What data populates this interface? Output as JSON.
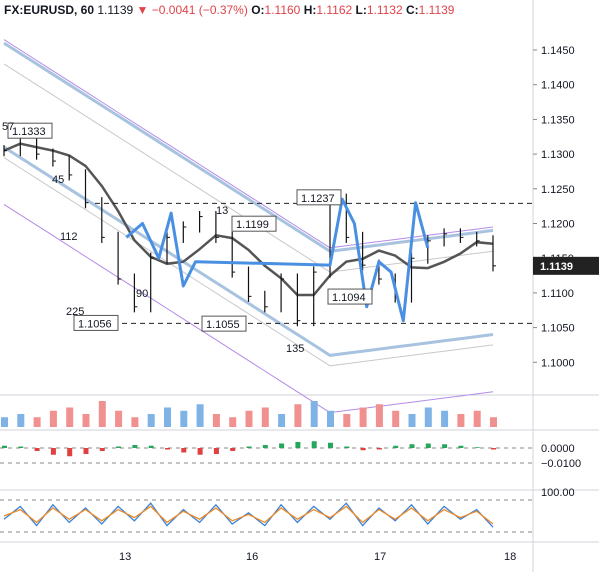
{
  "header": {
    "symbol": "FX:EURUSD, 60",
    "last": "1.1139",
    "change": "−0.0041 (−0.37%)",
    "open_label": "O:",
    "open": "1.1160",
    "high_label": "H:",
    "high": "1.1162",
    "low_label": "L:",
    "low": "1.1132",
    "close_label": "C:",
    "close": "1.1139"
  },
  "chart_data": {
    "type": "line",
    "title": "FX:EURUSD, 60",
    "price_axis": {
      "ticks": [
        "1.1450",
        "1.1400",
        "1.1350",
        "1.1300",
        "1.1250",
        "1.1200",
        "1.1150",
        "1.1100",
        "1.1050",
        "1.1000"
      ],
      "values": [
        1.145,
        1.14,
        1.135,
        1.13,
        1.125,
        1.12,
        1.115,
        1.11,
        1.105,
        1.1
      ],
      "current_price_label": "1.1139"
    },
    "time_axis": {
      "ticks": [
        "13",
        "16",
        "17",
        "18"
      ]
    },
    "price_series": {
      "name": "EURUSD",
      "x": [
        0,
        4,
        8,
        12,
        16,
        20,
        24,
        28,
        32,
        36,
        40,
        44,
        48,
        52,
        56,
        60,
        64,
        68,
        72,
        76,
        80,
        84,
        88,
        92,
        96,
        100,
        104,
        108,
        112,
        116,
        120
      ],
      "values": [
        1.1305,
        1.1325,
        1.13,
        1.129,
        1.127,
        1.123,
        1.118,
        1.112,
        1.108,
        1.115,
        1.118,
        1.1195,
        1.121,
        1.118,
        1.113,
        1.1095,
        1.108,
        1.112,
        1.106,
        1.113,
        1.1235,
        1.118,
        1.114,
        1.112,
        1.1094,
        1.115,
        1.1175,
        1.1185,
        1.118,
        1.1175,
        1.1139
      ]
    },
    "projection": {
      "x": [
        30,
        34,
        38,
        41,
        44,
        47,
        80,
        83,
        86,
        89,
        92,
        95,
        98,
        101,
        104
      ],
      "values": [
        1.118,
        1.12,
        1.115,
        1.1215,
        1.111,
        1.1145,
        1.114,
        1.1235,
        1.12,
        1.108,
        1.1145,
        1.113,
        1.106,
        1.123,
        1.1165
      ]
    },
    "levels": [
      {
        "label": "1.1333",
        "value": 1.1333
      },
      {
        "label": "1.1237",
        "value": 1.1237
      },
      {
        "label": "1.1199",
        "value": 1.1199
      },
      {
        "label": "1.1094",
        "value": 1.1094
      },
      {
        "label": "1.1056",
        "value": 1.1056
      },
      {
        "label": "1.1055",
        "value": 1.1055
      }
    ],
    "dashed_lines": [
      1.1229,
      1.1056
    ],
    "cycle_labels": [
      "57",
      "45",
      "112",
      "13",
      "90",
      "225",
      "135"
    ],
    "volume_series": [
      3,
      4,
      3,
      5,
      6,
      4,
      8,
      5,
      3,
      4,
      6,
      5,
      7,
      4,
      3,
      5,
      6,
      4,
      7,
      8,
      5,
      4,
      6,
      7,
      5,
      4,
      6,
      5,
      4,
      5,
      3
    ],
    "macd_axis": {
      "ticks": [
        "0.0000",
        "−0.0100"
      ],
      "values": [
        0,
        -0.01
      ]
    },
    "macd_histogram": [
      0.0015,
      0.001,
      -0.002,
      -0.0045,
      -0.0055,
      -0.004,
      -0.002,
      0.001,
      0.002,
      0.0015,
      -0.001,
      -0.003,
      -0.0045,
      -0.004,
      -0.002,
      0.001,
      0.002,
      0.003,
      0.004,
      0.0045,
      0.0035,
      0.001,
      -0.0015,
      -0.001,
      0.0015,
      0.0025,
      0.003,
      0.0025,
      0.0015,
      0.0005,
      -0.001
    ],
    "stoch_axis": {
      "ticks": [
        "100.00"
      ],
      "values": [
        100
      ]
    },
    "stoch_k": [
      40,
      80,
      20,
      85,
      30,
      75,
      25,
      80,
      35,
      90,
      20,
      70,
      30,
      85,
      25,
      60,
      20,
      85,
      30,
      80,
      40,
      90,
      20,
      75,
      35,
      85,
      25,
      80,
      40,
      70,
      15
    ],
    "stoch_d": [
      50,
      70,
      30,
      75,
      40,
      70,
      35,
      70,
      45,
      80,
      30,
      65,
      40,
      75,
      35,
      55,
      30,
      75,
      40,
      70,
      45,
      80,
      30,
      70,
      40,
      75,
      35,
      70,
      45,
      65,
      25
    ]
  }
}
